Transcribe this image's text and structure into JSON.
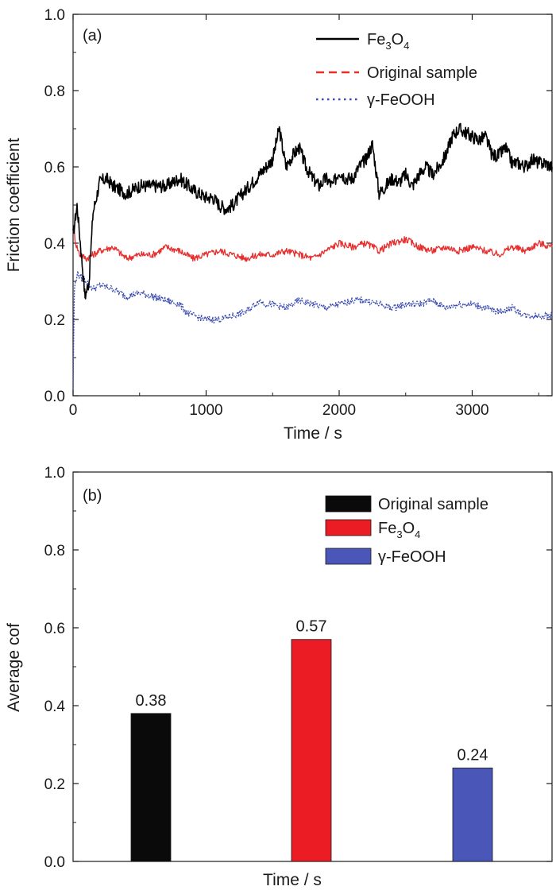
{
  "chart_data": [
    {
      "type": "line",
      "panel_label": "(a)",
      "xlabel": "Time / s",
      "ylabel": "Friction coefficient",
      "xlim": [
        0,
        3600
      ],
      "ylim": [
        0.0,
        1.0
      ],
      "xticks": [
        0,
        1000,
        2000,
        3000
      ],
      "xtick_labels": [
        "0",
        "1000",
        "2000",
        "3000"
      ],
      "yticks": [
        0.0,
        0.2,
        0.4,
        0.6,
        0.8,
        1.0
      ],
      "ytick_labels": [
        "0.0",
        "0.2",
        "0.4",
        "0.6",
        "0.8",
        "1.0"
      ],
      "legend_position": "top-right",
      "series": [
        {
          "name": "Fe3O4",
          "label_main": "Fe",
          "label_sub1": "3",
          "label_mid": "O",
          "label_sub2": "4",
          "color": "#000000",
          "style": "solid",
          "x": [
            0,
            30,
            60,
            90,
            120,
            150,
            200,
            250,
            300,
            400,
            500,
            600,
            700,
            800,
            900,
            1000,
            1050,
            1100,
            1150,
            1200,
            1300,
            1400,
            1450,
            1500,
            1550,
            1600,
            1650,
            1700,
            1750,
            1800,
            1850,
            1900,
            1950,
            2000,
            2050,
            2100,
            2150,
            2200,
            2250,
            2300,
            2350,
            2400,
            2450,
            2500,
            2550,
            2600,
            2650,
            2700,
            2750,
            2800,
            2850,
            2900,
            2950,
            3000,
            3050,
            3100,
            3150,
            3200,
            3250,
            3300,
            3350,
            3400,
            3450,
            3500,
            3550,
            3600
          ],
          "y": [
            0.42,
            0.5,
            0.38,
            0.26,
            0.3,
            0.48,
            0.56,
            0.57,
            0.55,
            0.53,
            0.55,
            0.55,
            0.55,
            0.57,
            0.54,
            0.52,
            0.52,
            0.5,
            0.49,
            0.5,
            0.54,
            0.58,
            0.6,
            0.62,
            0.7,
            0.6,
            0.63,
            0.65,
            0.6,
            0.57,
            0.55,
            0.57,
            0.55,
            0.59,
            0.57,
            0.57,
            0.6,
            0.62,
            0.66,
            0.53,
            0.55,
            0.57,
            0.56,
            0.58,
            0.55,
            0.58,
            0.6,
            0.58,
            0.6,
            0.63,
            0.68,
            0.7,
            0.69,
            0.68,
            0.67,
            0.68,
            0.63,
            0.63,
            0.65,
            0.61,
            0.61,
            0.6,
            0.62,
            0.61,
            0.61,
            0.6
          ]
        },
        {
          "name": "Original sample",
          "label_main": "Original sample",
          "color": "#e53030",
          "style": "dashed",
          "x": [
            0,
            20,
            50,
            100,
            150,
            200,
            300,
            400,
            500,
            600,
            700,
            800,
            900,
            1000,
            1100,
            1200,
            1300,
            1400,
            1500,
            1600,
            1700,
            1800,
            1900,
            2000,
            2100,
            2200,
            2300,
            2400,
            2500,
            2600,
            2700,
            2800,
            2900,
            3000,
            3100,
            3200,
            3300,
            3400,
            3500,
            3600
          ],
          "y": [
            0.45,
            0.4,
            0.37,
            0.36,
            0.37,
            0.38,
            0.39,
            0.36,
            0.37,
            0.37,
            0.39,
            0.38,
            0.36,
            0.37,
            0.38,
            0.37,
            0.36,
            0.37,
            0.37,
            0.38,
            0.37,
            0.36,
            0.38,
            0.4,
            0.39,
            0.4,
            0.38,
            0.4,
            0.41,
            0.39,
            0.38,
            0.39,
            0.38,
            0.39,
            0.38,
            0.37,
            0.39,
            0.38,
            0.4,
            0.39
          ]
        },
        {
          "name": "γ-FeOOH",
          "label_main": "γ-FeOOH",
          "color": "#3a4cb0",
          "style": "dotted",
          "x": [
            0,
            10,
            30,
            60,
            100,
            150,
            200,
            300,
            400,
            500,
            600,
            700,
            800,
            850,
            900,
            1000,
            1100,
            1200,
            1300,
            1400,
            1450,
            1500,
            1600,
            1700,
            1800,
            1900,
            2000,
            2100,
            2200,
            2300,
            2400,
            2500,
            2600,
            2700,
            2800,
            2900,
            3000,
            3100,
            3200,
            3300,
            3400,
            3500,
            3600
          ],
          "y": [
            0.02,
            0.28,
            0.32,
            0.31,
            0.3,
            0.28,
            0.29,
            0.28,
            0.26,
            0.27,
            0.26,
            0.25,
            0.24,
            0.22,
            0.21,
            0.2,
            0.2,
            0.21,
            0.22,
            0.25,
            0.24,
            0.24,
            0.23,
            0.25,
            0.24,
            0.23,
            0.24,
            0.25,
            0.25,
            0.24,
            0.23,
            0.24,
            0.24,
            0.25,
            0.23,
            0.24,
            0.24,
            0.23,
            0.22,
            0.23,
            0.21,
            0.21,
            0.21
          ]
        }
      ]
    },
    {
      "type": "bar",
      "panel_label": "(b)",
      "xlabel": "Time / s",
      "ylabel": "Average cof",
      "ylim": [
        0.0,
        1.0
      ],
      "yticks": [
        0.0,
        0.2,
        0.4,
        0.6,
        0.8,
        1.0
      ],
      "ytick_labels": [
        "0.0",
        "0.2",
        "0.4",
        "0.6",
        "0.8",
        "1.0"
      ],
      "legend_position": "top-right",
      "categories": [
        "Original sample",
        "Fe3O4",
        "γ-FeOOH"
      ],
      "values": [
        0.38,
        0.57,
        0.24
      ],
      "value_labels": [
        "0.38",
        "0.57",
        "0.24"
      ],
      "colors": [
        "#0a0a0a",
        "#ec1c24",
        "#4a56b8"
      ],
      "legend": [
        {
          "label_main": "Original sample",
          "color": "#0a0a0a"
        },
        {
          "label_main": "Fe",
          "label_sub1": "3",
          "label_mid": "O",
          "label_sub2": "4",
          "color": "#ec1c24"
        },
        {
          "label_main": "γ-FeOOH",
          "color": "#4a56b8"
        }
      ]
    }
  ]
}
